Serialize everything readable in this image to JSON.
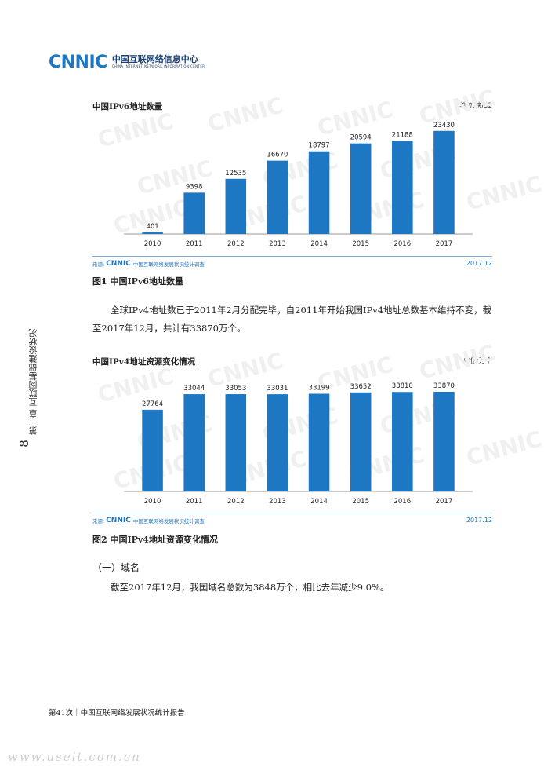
{
  "header": {
    "logo_mark": "CNNIC",
    "logo_cn": "中国互联网络信息中心",
    "logo_en": "CHINA INTERNET NETWORK INFORMATION CENTER"
  },
  "side": {
    "chapter": "第一章 互联网基础建设状况",
    "page_number": "8"
  },
  "figure1": {
    "unit": "单位:块/32",
    "source_prefix": "来源:",
    "source_logo": "CNNIC",
    "source_text": "中国互联网络发展状况统计调查",
    "date": "2017.12",
    "caption": "图1 中国IPv6地址数量"
  },
  "figure2": {
    "unit": "单位:万个",
    "source_prefix": "来源:",
    "source_logo": "CNNIC",
    "source_text": "中国互联网络发展状况统计调查",
    "date": "2017.12",
    "caption": "图2 中国IPv4地址资源变化情况"
  },
  "chart_data": [
    {
      "type": "bar",
      "title": "中国IPv6地址数量",
      "categories": [
        "2010",
        "2011",
        "2012",
        "2013",
        "2014",
        "2015",
        "2016",
        "2017"
      ],
      "values": [
        401,
        9398,
        12535,
        16670,
        18797,
        20594,
        21188,
        23430
      ],
      "ylim": [
        0,
        25000
      ],
      "grid": false,
      "color": "#1e77c3"
    },
    {
      "type": "bar",
      "title": "中国IPv4地址资源变化情况",
      "categories": [
        "2010",
        "2011",
        "2012",
        "2013",
        "2014",
        "2015",
        "2016",
        "2017"
      ],
      "values": [
        27764,
        33044,
        33053,
        33031,
        33199,
        33652,
        33810,
        33870
      ],
      "ylim": [
        0,
        40000
      ],
      "grid": false,
      "color": "#1e77c3"
    }
  ],
  "body": {
    "para1": "全球IPv4地址数已于2011年2月分配完毕，自2011年开始我国IPv4地址总数基本维持不变，截至2017年12月，共计有33870万个。",
    "section_heading": "（一）域名",
    "para2": "截至2017年12月，我国域名总数为3848万个，相比去年减少9.0%。"
  },
  "footer": {
    "text": "第41次｜中国互联网络发展状况统计报告"
  },
  "watermark": "www.useit.com.cn",
  "colors": {
    "brand_blue": "#1e77c3",
    "bar_blue": "#1e77c3"
  }
}
